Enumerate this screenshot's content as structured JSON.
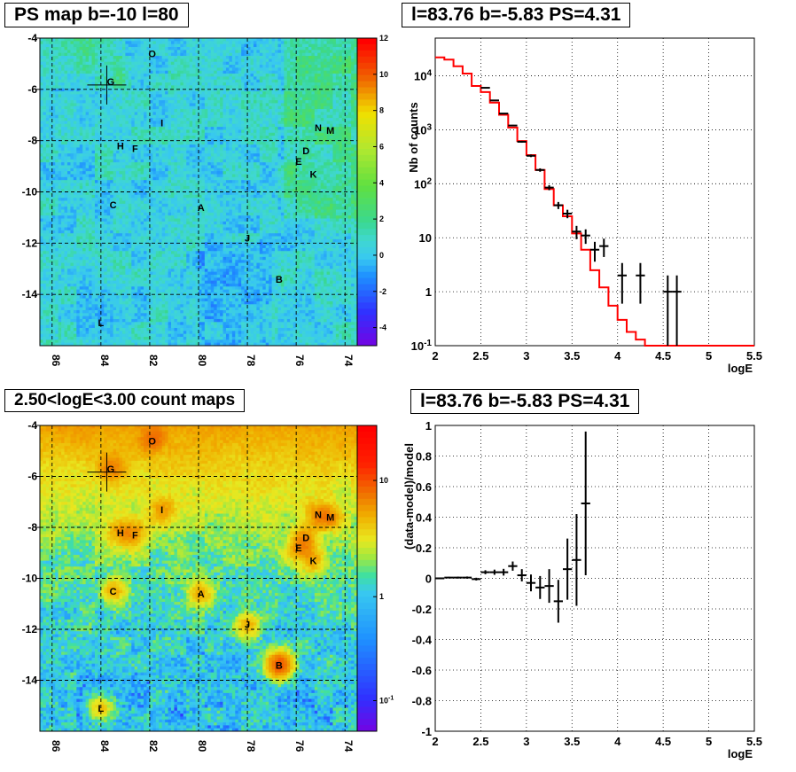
{
  "titles": {
    "top_left": "PS map b=-10 l=80",
    "top_right": "l=83.76 b=-5.83 PS=4.31",
    "bottom_left": "2.50<logE<3.00 count maps",
    "bottom_right": "l=83.76 b=-5.83 PS=4.31"
  },
  "chart_data": [
    {
      "type": "heatmap",
      "title": "PS map b=-10 l=80",
      "x_ticks": [
        "86",
        "84",
        "82",
        "80",
        "78",
        "76",
        "74"
      ],
      "y_ticks": [
        "-4",
        "-6",
        "-8",
        "-10",
        "-12",
        "-14"
      ],
      "xlim": [
        86.5,
        73.5
      ],
      "ylim": [
        -16,
        -4
      ],
      "grid": true,
      "colorbar": {
        "scale": "linear",
        "range": [
          -5,
          12
        ],
        "ticks": [
          "12",
          "10",
          "8",
          "6",
          "4",
          "2",
          "0",
          "-2",
          "-4"
        ]
      },
      "sources": [
        {
          "label": "O",
          "l": 81.9,
          "b": -4.6
        },
        {
          "label": "G",
          "l": 83.6,
          "b": -5.7
        },
        {
          "label": "I",
          "l": 81.5,
          "b": -7.3
        },
        {
          "label": "N",
          "l": 75.1,
          "b": -7.5
        },
        {
          "label": "M",
          "l": 74.6,
          "b": -7.6
        },
        {
          "label": "H",
          "l": 83.2,
          "b": -8.2
        },
        {
          "label": "F",
          "l": 82.6,
          "b": -8.3
        },
        {
          "label": "D",
          "l": 75.6,
          "b": -8.4
        },
        {
          "label": "E",
          "l": 75.9,
          "b": -8.8
        },
        {
          "label": "K",
          "l": 75.3,
          "b": -9.3
        },
        {
          "label": "C",
          "l": 83.5,
          "b": -10.5
        },
        {
          "label": "A",
          "l": 79.9,
          "b": -10.6
        },
        {
          "label": "J",
          "l": 78.0,
          "b": -11.8
        },
        {
          "label": "B",
          "l": 76.7,
          "b": -13.4
        },
        {
          "label": "L",
          "l": 84.0,
          "b": -15.1
        }
      ],
      "marker": {
        "l": 83.76,
        "b": -5.83
      }
    },
    {
      "type": "line",
      "title": "l=83.76 b=-5.83 PS=4.31",
      "xlabel": "logE",
      "ylabel": "Nb of counts",
      "xlim": [
        2,
        5.5
      ],
      "ylim": [
        0.1,
        50000
      ],
      "yscale": "log",
      "x_ticks": [
        "2",
        "2.5",
        "3",
        "3.5",
        "4",
        "4.5",
        "5",
        "5.5"
      ],
      "y_ticks": [
        "10^{-1}",
        "1",
        "10",
        "10^{2}",
        "10^{3}",
        "10^{4}"
      ],
      "grid": true,
      "series": [
        {
          "type": "step",
          "color": "#ff0000",
          "bin_edges": [
            2,
            2.1,
            2.2,
            2.3,
            2.4,
            2.5,
            2.6,
            2.7,
            2.8,
            2.9,
            3,
            3.1,
            3.2,
            3.3,
            3.4,
            3.5,
            3.6,
            3.7,
            3.8,
            3.9,
            4,
            4.1,
            4.2,
            4.3,
            4.4,
            4.5,
            4.6,
            4.7,
            4.8,
            4.9,
            5,
            5.1,
            5.2,
            5.3,
            5.4,
            5.5
          ],
          "values": [
            22000,
            20000,
            15000,
            11000,
            6500,
            5000,
            3200,
            1900,
            1100,
            620,
            340,
            180,
            80,
            40,
            25,
            12,
            6,
            2.5,
            1.2,
            0.55,
            0.3,
            0.18,
            0.13,
            0.1,
            0.1,
            0.1,
            0.1,
            0.1,
            0.1,
            0.1,
            0.1,
            0.1,
            0.1,
            0.1,
            0.1
          ]
        },
        {
          "type": "errorbar",
          "color": "#000000",
          "x": [
            2.55,
            2.65,
            2.75,
            2.85,
            2.95,
            3.05,
            3.15,
            3.25,
            3.35,
            3.45,
            3.55,
            3.65,
            3.75,
            3.85,
            4.05,
            4.25,
            4.55,
            4.65
          ],
          "y": [
            6000,
            3500,
            2000,
            1200,
            600,
            330,
            180,
            85,
            40,
            28,
            13,
            11,
            6,
            7,
            2,
            2,
            1,
            1
          ],
          "yerr": [
            [
              77,
              77
            ],
            [
              59,
              59
            ],
            [
              45,
              45
            ],
            [
              35,
              35
            ],
            [
              24,
              24
            ],
            [
              18,
              18
            ],
            [
              13,
              13
            ],
            [
              9,
              9
            ],
            [
              6,
              6
            ],
            [
              5,
              5
            ],
            [
              3.6,
              3.6
            ],
            [
              3.3,
              3.3
            ],
            [
              2.4,
              2.4
            ],
            [
              2.6,
              2.6
            ],
            [
              1.4,
              1.4
            ],
            [
              1.4,
              1.4
            ],
            [
              1,
              1
            ],
            [
              1,
              1
            ]
          ]
        }
      ]
    },
    {
      "type": "heatmap",
      "title": "2.50<logE<3.00 count maps",
      "x_ticks": [
        "86",
        "84",
        "82",
        "80",
        "78",
        "76",
        "74"
      ],
      "y_ticks": [
        "-4",
        "-6",
        "-8",
        "-10",
        "-12",
        "-14"
      ],
      "xlim": [
        86.5,
        73.5
      ],
      "ylim": [
        -16,
        -4
      ],
      "grid": true,
      "colorbar": {
        "scale": "log",
        "ticks": [
          "10",
          "1",
          "10^{-1}"
        ]
      },
      "marker": {
        "l": 83.76,
        "b": -5.83
      }
    },
    {
      "type": "scatter",
      "title": "l=83.76 b=-5.83 PS=4.31",
      "xlabel": "logE",
      "ylabel": "(data-model)/model",
      "xlim": [
        2,
        5.5
      ],
      "ylim": [
        -1,
        1
      ],
      "x_ticks": [
        "2",
        "2.5",
        "3",
        "3.5",
        "4",
        "4.5",
        "5",
        "5.5"
      ],
      "y_ticks": [
        "1",
        "0.8",
        "0.6",
        "0.4",
        "0.2",
        "0",
        "-0.2",
        "-0.4",
        "-0.6",
        "-0.8",
        "-1"
      ],
      "grid": true,
      "points": [
        {
          "x": 2.05,
          "y": 0.0,
          "e": 0.005
        },
        {
          "x": 2.15,
          "y": 0.005,
          "e": 0.005
        },
        {
          "x": 2.25,
          "y": 0.005,
          "e": 0.006
        },
        {
          "x": 2.35,
          "y": 0.005,
          "e": 0.007
        },
        {
          "x": 2.45,
          "y": -0.005,
          "e": 0.009
        },
        {
          "x": 2.55,
          "y": 0.04,
          "e": 0.013
        },
        {
          "x": 2.65,
          "y": 0.04,
          "e": 0.017
        },
        {
          "x": 2.75,
          "y": 0.04,
          "e": 0.022
        },
        {
          "x": 2.85,
          "y": 0.08,
          "e": 0.03
        },
        {
          "x": 2.95,
          "y": 0.02,
          "e": 0.04
        },
        {
          "x": 3.05,
          "y": -0.03,
          "e": 0.055
        },
        {
          "x": 3.15,
          "y": -0.06,
          "e": 0.075
        },
        {
          "x": 3.25,
          "y": -0.05,
          "e": 0.11
        },
        {
          "x": 3.35,
          "y": -0.15,
          "e": 0.14
        },
        {
          "x": 3.45,
          "y": 0.06,
          "e": 0.2
        },
        {
          "x": 3.55,
          "y": 0.12,
          "e": 0.3
        },
        {
          "x": 3.65,
          "y": 0.49,
          "e": 0.47
        }
      ]
    }
  ]
}
